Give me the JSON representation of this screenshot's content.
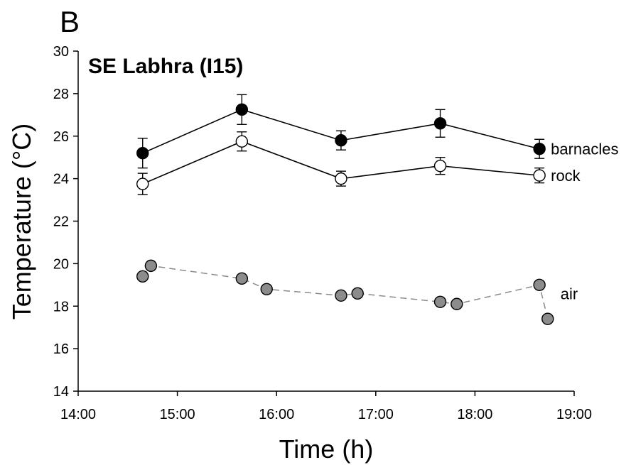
{
  "panel_label": "B",
  "chart_data": {
    "type": "scatter",
    "title": "SE Labhra (I15)",
    "xlabel": "Time (h)",
    "ylabel": "Temperature (°C)",
    "xlim": [
      "14:00",
      "19:00"
    ],
    "ylim": [
      14,
      30
    ],
    "x_ticks": [
      "14:00",
      "15:00",
      "16:00",
      "17:00",
      "18:00",
      "19:00"
    ],
    "y_ticks": [
      14,
      16,
      18,
      20,
      22,
      24,
      26,
      28,
      30
    ],
    "grid": false,
    "legend": "direct labels at right end of each series",
    "series": [
      {
        "name": "barnacles",
        "marker": "filled-circle",
        "color": "#000000",
        "line": "solid",
        "points": [
          {
            "x": "14:39",
            "y": 25.2,
            "err": 0.7
          },
          {
            "x": "15:39",
            "y": 27.25,
            "err": 0.7
          },
          {
            "x": "16:39",
            "y": 25.8,
            "err": 0.45
          },
          {
            "x": "17:39",
            "y": 26.6,
            "err": 0.65
          },
          {
            "x": "18:39",
            "y": 25.4,
            "err": 0.45
          }
        ]
      },
      {
        "name": "rock",
        "marker": "open-circle",
        "color": "#ffffff",
        "line": "solid",
        "points": [
          {
            "x": "14:39",
            "y": 23.75,
            "err": 0.5
          },
          {
            "x": "15:39",
            "y": 25.75,
            "err": 0.45
          },
          {
            "x": "16:39",
            "y": 24.0,
            "err": 0.35
          },
          {
            "x": "17:39",
            "y": 24.6,
            "err": 0.4
          },
          {
            "x": "18:39",
            "y": 24.15,
            "err": 0.35
          }
        ]
      },
      {
        "name": "air",
        "marker": "gray-circle",
        "color": "#8c8c8c",
        "line": "dashed",
        "points": [
          {
            "x": "14:39",
            "y": 19.4
          },
          {
            "x": "14:44",
            "y": 19.9
          },
          {
            "x": "15:39",
            "y": 19.3
          },
          {
            "x": "15:54",
            "y": 18.8
          },
          {
            "x": "16:39",
            "y": 18.5
          },
          {
            "x": "16:49",
            "y": 18.6
          },
          {
            "x": "17:39",
            "y": 18.2
          },
          {
            "x": "17:49",
            "y": 18.1
          },
          {
            "x": "18:39",
            "y": 19.0
          },
          {
            "x": "18:44",
            "y": 17.4
          }
        ]
      }
    ]
  }
}
